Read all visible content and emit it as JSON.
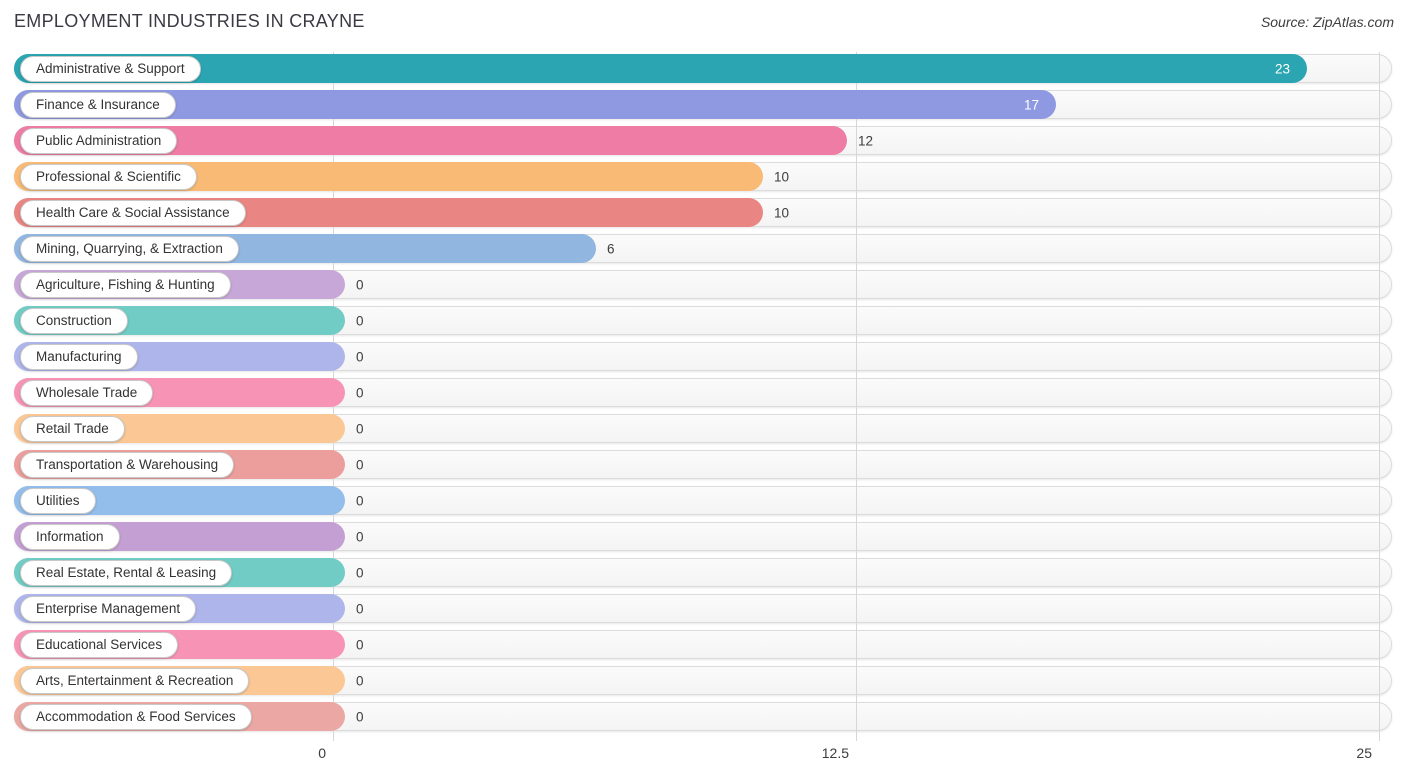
{
  "title": "EMPLOYMENT INDUSTRIES IN CRAYNE",
  "source": "Source: ZipAtlas.com",
  "chart_data": {
    "type": "bar",
    "orientation": "horizontal",
    "title": "EMPLOYMENT INDUSTRIES IN CRAYNE",
    "xlabel": "",
    "ylabel": "",
    "xlim": [
      0,
      25
    ],
    "x_ticks": [
      0,
      12.5,
      25
    ],
    "x_tick_labels": [
      "0",
      "12.5",
      "25"
    ],
    "grid": "vertical",
    "legend": "none",
    "categories": [
      "Administrative & Support",
      "Finance & Insurance",
      "Public Administration",
      "Professional & Scientific",
      "Health Care & Social Assistance",
      "Mining, Quarrying, & Extraction",
      "Agriculture, Fishing & Hunting",
      "Construction",
      "Manufacturing",
      "Wholesale Trade",
      "Retail Trade",
      "Transportation & Warehousing",
      "Utilities",
      "Information",
      "Real Estate, Rental & Leasing",
      "Enterprise Management",
      "Educational Services",
      "Arts, Entertainment & Recreation",
      "Accommodation & Food Services"
    ],
    "values": [
      23,
      17,
      12,
      10,
      10,
      6,
      0,
      0,
      0,
      0,
      0,
      0,
      0,
      0,
      0,
      0,
      0,
      0,
      0
    ],
    "bar_colors": [
      "#2aa5b1",
      "#8e99e2",
      "#ef7ca5",
      "#f8ba75",
      "#e98583",
      "#91b6e0",
      "#c7a7d7",
      "#70ccc4",
      "#aeb5ea",
      "#f794b5",
      "#fbc795",
      "#eb9e9b",
      "#93bdea",
      "#c49fd3",
      "#70ccc4",
      "#aeb5ea",
      "#f794b5",
      "#fbc795",
      "#eba7a3"
    ],
    "value_label_inside_threshold": 15,
    "value_label_inside_color": "#ffffff",
    "value_label_outside_color": "#3d3d3d",
    "gridline_color": "#d7d7d7"
  }
}
